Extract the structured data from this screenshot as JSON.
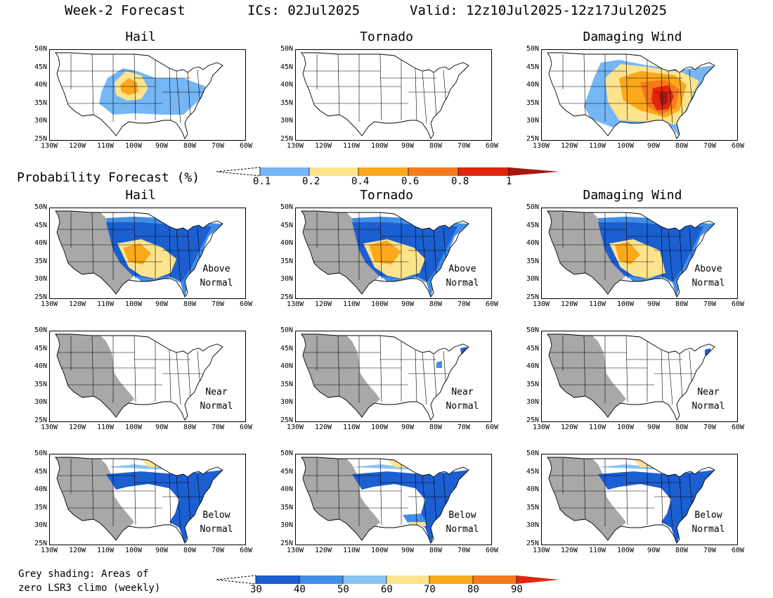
{
  "header": {
    "week": "Week-2 Forecast",
    "ics": "ICs: 02Jul2025",
    "valid": "Valid: 12z10Jul2025-12z17Jul2025"
  },
  "row_titles": {
    "top": [
      "Hail",
      "Tornado",
      "Damaging Wind"
    ],
    "second": [
      "Hail",
      "Tornado",
      "Damaging Wind"
    ]
  },
  "prob_label": "Probability Forecast (%)",
  "axes": {
    "lat_labels": [
      "50N",
      "45N",
      "40N",
      "35N",
      "30N",
      "25N"
    ],
    "lon_labels": [
      "130W",
      "120W",
      "110W",
      "100W",
      "90W",
      "80W",
      "70W",
      "60W"
    ]
  },
  "notes": {
    "above": [
      "Above",
      "Normal"
    ],
    "near": [
      "Near",
      "Normal"
    ],
    "below": [
      "Below",
      "Normal"
    ]
  },
  "colorbar_top": {
    "labels": [
      "0.1",
      "0.2",
      "0.4",
      "0.6",
      "0.8",
      "1"
    ],
    "colors": [
      "#75b6f5",
      "#fde48c",
      "#fba81c",
      "#f57a1e",
      "#e2260e",
      "#a5180e"
    ]
  },
  "colorbar_bottom": {
    "labels": [
      "30",
      "40",
      "50",
      "60",
      "70",
      "80",
      "90"
    ],
    "colors": [
      "#1c5fd1",
      "#418ee6",
      "#8ac4f5",
      "#fde48c",
      "#fba81c",
      "#f57a1e",
      "#e2260e"
    ]
  },
  "grey_note": [
    "Grey shading: Areas of",
    "zero LSR3 climo (weekly)"
  ],
  "colors": {
    "grey_zero": "#a8a8a8",
    "land_outline": "#000000"
  }
}
